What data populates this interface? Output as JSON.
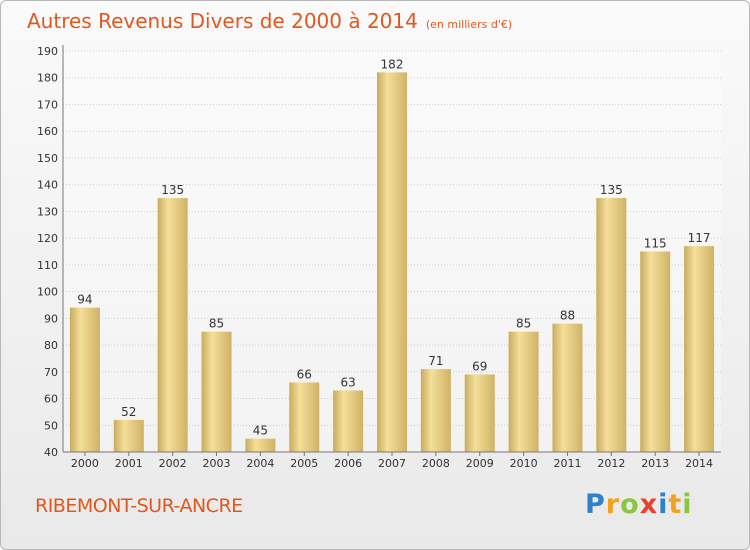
{
  "title": "Autres Revenus Divers de 2000 à 2014",
  "subtitle": "(en milliers d'€)",
  "city": "RIBEMONT-SUR-ANCRE",
  "logo": {
    "letters": [
      "P",
      "r",
      "o",
      "x",
      "i",
      "t",
      "i"
    ],
    "colors": [
      "#2f82c9",
      "#f2a21b",
      "#8cc63f",
      "#e8402a",
      "#2f82c9",
      "#f2a21b",
      "#8cc63f"
    ]
  },
  "chart_data": {
    "type": "bar",
    "categories": [
      "2000",
      "2001",
      "2002",
      "2003",
      "2004",
      "2005",
      "2006",
      "2007",
      "2008",
      "2009",
      "2010",
      "2011",
      "2012",
      "2013",
      "2014"
    ],
    "values": [
      94,
      52,
      135,
      85,
      45,
      66,
      63,
      182,
      71,
      69,
      85,
      88,
      135,
      115,
      117
    ],
    "ylim": [
      40,
      190
    ],
    "yticks": [
      40,
      50,
      60,
      70,
      80,
      90,
      100,
      110,
      120,
      130,
      140,
      150,
      160,
      170,
      180,
      190
    ],
    "grid": true,
    "bar_color": "#e6cf88"
  }
}
